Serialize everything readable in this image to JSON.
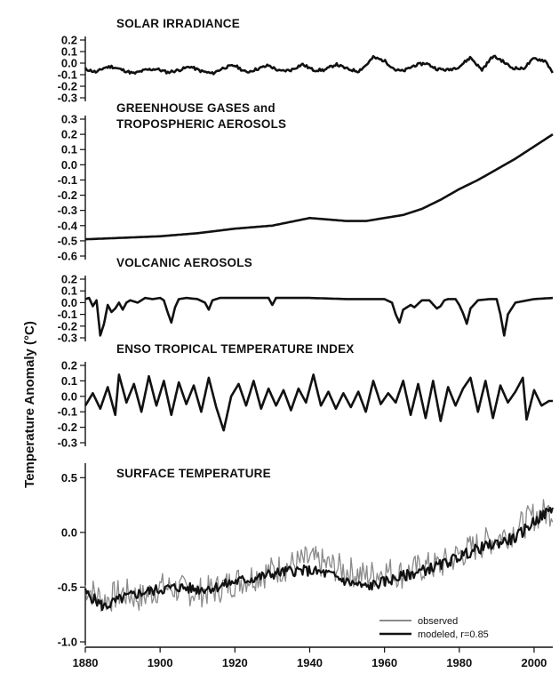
{
  "figure": {
    "ylabel": "Temperature Anomaly (°C)",
    "x_ticks": [
      "1880",
      "1900",
      "1920",
      "1940",
      "1960",
      "1980",
      "2000"
    ]
  },
  "colors": {
    "ink": "#111111",
    "observed": "#8a8a8a"
  },
  "chart_data": [
    {
      "type": "line",
      "title": "SOLAR IRRADIANCE",
      "xlim": [
        1880,
        2005
      ],
      "ylim": [
        -0.3,
        0.2
      ],
      "y_ticks": [
        "0.2",
        "0.1",
        "0.0",
        "-0.1",
        "-0.2",
        "-0.3"
      ],
      "series": [
        {
          "style": "black",
          "noise": 0.012,
          "seed": 11,
          "x": [
            1880,
            1883,
            1885,
            1887,
            1890,
            1893,
            1896,
            1899,
            1902,
            1905,
            1908,
            1911,
            1914,
            1917,
            1920,
            1923,
            1926,
            1929,
            1932,
            1935,
            1938,
            1941,
            1944,
            1947,
            1950,
            1953,
            1955,
            1957,
            1960,
            1963,
            1965,
            1968,
            1971,
            1974,
            1977,
            1980,
            1983,
            1986,
            1989,
            1991,
            1994,
            1997,
            2000,
            2003,
            2005
          ],
          "y": [
            -0.05,
            -0.08,
            -0.04,
            -0.03,
            -0.06,
            -0.09,
            -0.06,
            -0.05,
            -0.08,
            -0.06,
            -0.03,
            -0.07,
            -0.09,
            -0.04,
            -0.02,
            -0.08,
            -0.05,
            -0.02,
            -0.07,
            -0.06,
            -0.01,
            -0.06,
            -0.06,
            -0.01,
            -0.05,
            -0.07,
            -0.02,
            0.05,
            0.02,
            -0.06,
            -0.07,
            -0.02,
            0.0,
            -0.05,
            -0.06,
            -0.03,
            0.05,
            -0.06,
            0.06,
            0.03,
            -0.04,
            -0.05,
            0.04,
            0.02,
            -0.08
          ]
        }
      ]
    },
    {
      "type": "line",
      "title": "GREENHOUSE GASES and TROPOSPHERIC AEROSOLS",
      "title_lines": [
        "GREENHOUSE GASES and",
        "TROPOSPHERIC AEROSOLS"
      ],
      "xlim": [
        1880,
        2005
      ],
      "ylim": [
        -0.6,
        0.3
      ],
      "y_ticks": [
        "0.3",
        "0.2",
        "0.1",
        "0.0",
        "-0.1",
        "-0.2",
        "-0.3",
        "-0.4",
        "-0.5",
        "-0.6"
      ],
      "series": [
        {
          "style": "black",
          "noise": 0.0,
          "seed": 1,
          "x": [
            1880,
            1890,
            1900,
            1910,
            1920,
            1930,
            1940,
            1950,
            1955,
            1960,
            1965,
            1970,
            1975,
            1980,
            1985,
            1990,
            1995,
            2000,
            2005
          ],
          "y": [
            -0.49,
            -0.48,
            -0.47,
            -0.45,
            -0.42,
            -0.4,
            -0.35,
            -0.37,
            -0.37,
            -0.35,
            -0.33,
            -0.29,
            -0.23,
            -0.16,
            -0.1,
            -0.03,
            0.04,
            0.12,
            0.2
          ]
        }
      ]
    },
    {
      "type": "line",
      "title": "VOLCANIC AEROSOLS",
      "xlim": [
        1880,
        2005
      ],
      "ylim": [
        -0.3,
        0.2
      ],
      "y_ticks": [
        "0.2",
        "0.1",
        "0.0",
        "-0.1",
        "-0.2",
        "-0.3"
      ],
      "series": [
        {
          "style": "black",
          "noise": 0.0,
          "seed": 2,
          "x": [
            1880,
            1881,
            1882,
            1883,
            1884,
            1885,
            1886,
            1887,
            1888,
            1889,
            1890,
            1891,
            1892,
            1894,
            1896,
            1898,
            1900,
            1901,
            1902,
            1903,
            1904,
            1905,
            1907,
            1910,
            1912,
            1913,
            1914,
            1916,
            1920,
            1925,
            1929,
            1930,
            1931,
            1933,
            1940,
            1950,
            1960,
            1962,
            1963,
            1964,
            1965,
            1967,
            1968,
            1970,
            1972,
            1974,
            1975,
            1976,
            1977,
            1979,
            1980,
            1981,
            1982,
            1983,
            1985,
            1988,
            1990,
            1991,
            1992,
            1993,
            1995,
            2000,
            2005
          ],
          "y": [
            0.03,
            0.04,
            -0.03,
            0.02,
            -0.28,
            -0.18,
            -0.02,
            -0.08,
            -0.05,
            0.0,
            -0.06,
            0.0,
            0.02,
            0.0,
            0.04,
            0.03,
            0.04,
            0.02,
            -0.08,
            -0.17,
            -0.04,
            0.03,
            0.04,
            0.03,
            0.0,
            -0.06,
            0.02,
            0.04,
            0.04,
            0.04,
            0.04,
            -0.02,
            0.04,
            0.04,
            0.04,
            0.03,
            0.03,
            0.0,
            -0.1,
            -0.17,
            -0.06,
            -0.02,
            -0.04,
            0.02,
            0.02,
            -0.05,
            -0.03,
            0.02,
            0.03,
            0.03,
            -0.02,
            -0.09,
            -0.18,
            -0.05,
            0.02,
            0.03,
            0.03,
            -0.1,
            -0.28,
            -0.1,
            0.0,
            0.03,
            0.04
          ]
        }
      ]
    },
    {
      "type": "line",
      "title": "ENSO TROPICAL TEMPERATURE INDEX",
      "xlim": [
        1880,
        2005
      ],
      "ylim": [
        -0.3,
        0.2
      ],
      "y_ticks": [
        "0.2",
        "0.1",
        "0.0",
        "-0.1",
        "-0.2",
        "-0.3"
      ],
      "series": [
        {
          "style": "black",
          "noise": 0.0,
          "seed": 3,
          "x": [
            1880,
            1882,
            1884,
            1886,
            1888,
            1889,
            1891,
            1893,
            1895,
            1897,
            1899,
            1901,
            1903,
            1905,
            1907,
            1909,
            1911,
            1913,
            1915,
            1917,
            1919,
            1921,
            1923,
            1925,
            1927,
            1929,
            1931,
            1933,
            1935,
            1937,
            1939,
            1941,
            1943,
            1945,
            1947,
            1949,
            1951,
            1953,
            1955,
            1957,
            1959,
            1961,
            1963,
            1965,
            1967,
            1969,
            1971,
            1973,
            1975,
            1977,
            1979,
            1981,
            1983,
            1985,
            1987,
            1989,
            1991,
            1993,
            1995,
            1997,
            1998,
            2000,
            2002,
            2004
          ],
          "y": [
            -0.06,
            0.02,
            -0.08,
            0.06,
            -0.12,
            0.14,
            -0.04,
            0.08,
            -0.1,
            0.13,
            -0.06,
            0.1,
            -0.12,
            0.09,
            -0.05,
            0.07,
            -0.1,
            0.12,
            -0.07,
            -0.22,
            0.0,
            0.08,
            -0.06,
            0.1,
            -0.08,
            0.05,
            -0.06,
            0.04,
            -0.09,
            0.05,
            -0.04,
            0.14,
            -0.06,
            0.03,
            -0.08,
            0.02,
            -0.07,
            0.03,
            -0.1,
            0.1,
            -0.05,
            0.02,
            -0.04,
            0.1,
            -0.12,
            0.08,
            -0.14,
            0.1,
            -0.16,
            0.06,
            -0.06,
            0.05,
            0.12,
            -0.1,
            0.1,
            -0.14,
            0.07,
            -0.04,
            0.03,
            0.12,
            -0.15,
            0.04,
            -0.06,
            -0.03
          ]
        }
      ]
    },
    {
      "type": "line",
      "title": "SURFACE TEMPERATURE",
      "xlim": [
        1880,
        2005
      ],
      "ylim": [
        -1.0,
        0.6
      ],
      "y_ticks": [
        "0.5",
        "0.0",
        "-0.5",
        "-1.0"
      ],
      "y_tick_values": [
        0.5,
        0.0,
        -0.5,
        -1.0
      ],
      "legend": {
        "position": "bottom-right",
        "entries": [
          "observed",
          "modeled, r=0.85"
        ]
      },
      "series": [
        {
          "name": "observed",
          "style": "gray",
          "noise": 0.14,
          "seed": 7,
          "x": [
            1880,
            1885,
            1890,
            1895,
            1900,
            1905,
            1910,
            1915,
            1920,
            1925,
            1930,
            1935,
            1940,
            1945,
            1950,
            1955,
            1960,
            1965,
            1970,
            1975,
            1980,
            1985,
            1990,
            1995,
            2000,
            2005
          ],
          "y": [
            -0.5,
            -0.62,
            -0.55,
            -0.6,
            -0.5,
            -0.52,
            -0.55,
            -0.52,
            -0.45,
            -0.4,
            -0.35,
            -0.3,
            -0.25,
            -0.3,
            -0.35,
            -0.4,
            -0.35,
            -0.38,
            -0.32,
            -0.3,
            -0.2,
            -0.12,
            -0.05,
            0.02,
            0.15,
            0.2
          ]
        },
        {
          "name": "modeled, r=0.85",
          "style": "black",
          "noise": 0.05,
          "seed": 5,
          "x": [
            1880,
            1885,
            1890,
            1895,
            1900,
            1905,
            1910,
            1915,
            1920,
            1925,
            1930,
            1935,
            1940,
            1945,
            1950,
            1955,
            1960,
            1965,
            1970,
            1975,
            1980,
            1985,
            1990,
            1995,
            2000,
            2005
          ],
          "y": [
            -0.55,
            -0.68,
            -0.6,
            -0.55,
            -0.52,
            -0.5,
            -0.52,
            -0.5,
            -0.45,
            -0.42,
            -0.38,
            -0.35,
            -0.35,
            -0.38,
            -0.45,
            -0.5,
            -0.45,
            -0.4,
            -0.35,
            -0.3,
            -0.22,
            -0.15,
            -0.1,
            -0.05,
            0.1,
            0.22
          ]
        }
      ]
    }
  ]
}
